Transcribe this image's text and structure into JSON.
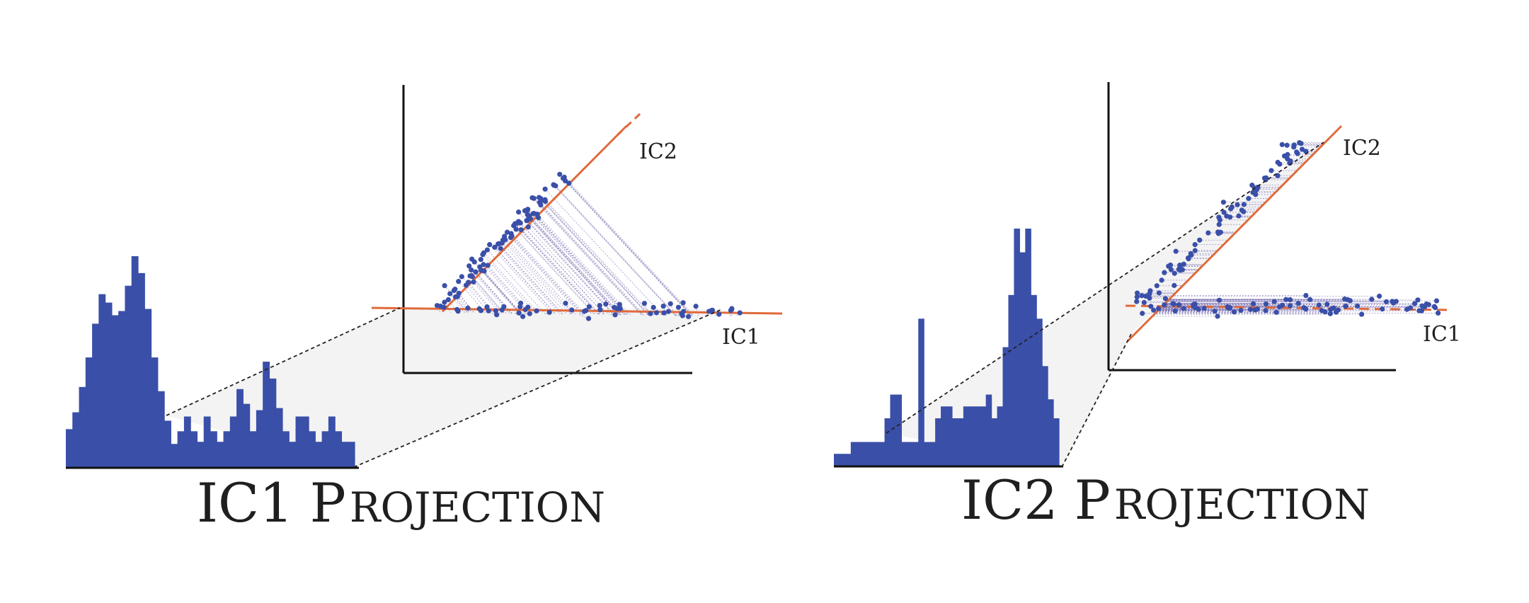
{
  "colors": {
    "background": "#ffffff",
    "points": "#3a4fa8",
    "histogram": "#3a4fa8",
    "component_line": "#e06a3a",
    "axes": "#111111",
    "guide": "#222222",
    "projection_link": "#6b5fa8",
    "shadow": "#eeeeee"
  },
  "panels": [
    {
      "id": "ic1",
      "title_main": "IC1",
      "title_rest_cap": "P",
      "title_rest_small": "ROJECTION",
      "axis_labels": {
        "ic2": "IC2",
        "ic1": "IC1"
      },
      "histogram_heights": [
        0.18,
        0.26,
        0.38,
        0.52,
        0.68,
        0.82,
        0.78,
        0.72,
        0.74,
        0.86,
        1.0,
        0.92,
        0.75,
        0.52,
        0.36,
        0.22,
        0.11,
        0.17,
        0.24,
        0.17,
        0.12,
        0.24,
        0.17,
        0.12,
        0.17,
        0.24,
        0.37,
        0.3,
        0.17,
        0.27,
        0.5,
        0.42,
        0.28,
        0.17,
        0.12,
        0.24,
        0.24,
        0.17,
        0.12,
        0.17,
        0.24,
        0.17,
        0.12,
        0.12
      ],
      "projected_onto": "IC1"
    },
    {
      "id": "ic2",
      "title_main": "IC2",
      "title_rest_cap": "P",
      "title_rest_small": "ROJECTION",
      "axis_labels": {
        "ic2": "IC2",
        "ic1": "IC1"
      },
      "histogram_heights": [
        0.05,
        0.05,
        0.05,
        0.1,
        0.1,
        0.1,
        0.1,
        0.1,
        0.1,
        0.2,
        0.3,
        0.3,
        0.1,
        0.1,
        0.1,
        0.62,
        0.1,
        0.1,
        0.2,
        0.25,
        0.25,
        0.2,
        0.2,
        0.25,
        0.25,
        0.25,
        0.25,
        0.3,
        0.2,
        0.25,
        0.5,
        0.72,
        1.0,
        0.9,
        1.0,
        0.72,
        0.62,
        0.42,
        0.28,
        0.2
      ],
      "projected_onto": "IC2"
    }
  ]
}
